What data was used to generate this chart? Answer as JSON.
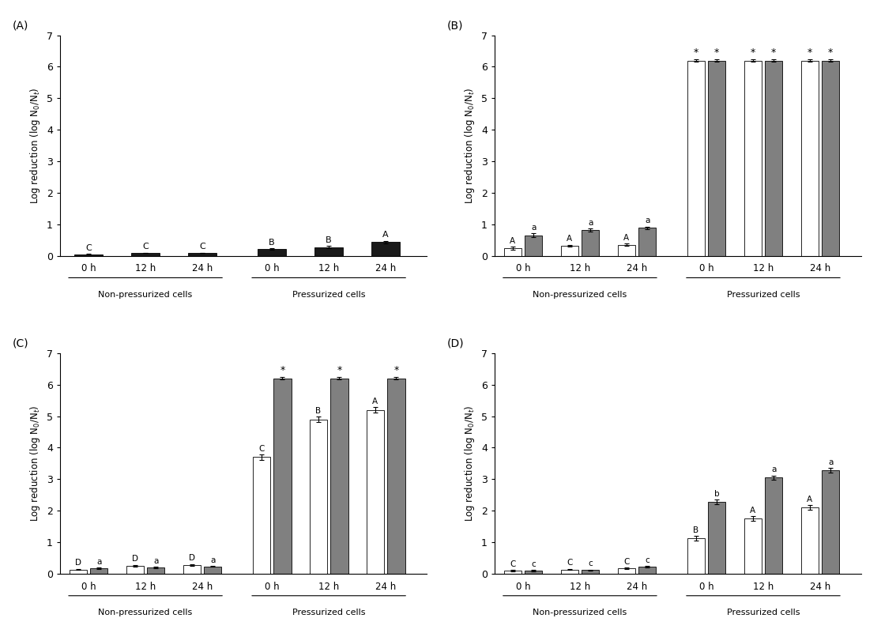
{
  "panels": [
    "A",
    "B",
    "C",
    "D"
  ],
  "time_labels": [
    "0 h",
    "12 h",
    "24 h"
  ],
  "bar_color_white": "#ffffff",
  "bar_color_gray": "#808080",
  "bar_color_black": "#1a1a1a",
  "ylim": [
    0,
    7
  ],
  "yticks": [
    0,
    1,
    2,
    3,
    4,
    5,
    6,
    7
  ],
  "A": {
    "title": "(A)",
    "non_pressurized": [
      0.05,
      0.09,
      0.09
    ],
    "non_pressurized_err": [
      0.01,
      0.01,
      0.01
    ],
    "pressurized": [
      0.21,
      0.27,
      0.43
    ],
    "pressurized_err": [
      0.03,
      0.04,
      0.04
    ],
    "labels_non": [
      "C",
      "C",
      "C"
    ],
    "labels_press": [
      "B",
      "B",
      "A"
    ]
  },
  "B": {
    "title": "(B)",
    "non_pressurized_white": [
      0.24,
      0.32,
      0.35
    ],
    "non_pressurized_white_err": [
      0.04,
      0.03,
      0.03
    ],
    "non_pressurized_gray": [
      0.65,
      0.82,
      0.88
    ],
    "non_pressurized_gray_err": [
      0.06,
      0.05,
      0.05
    ],
    "pressurized_white": [
      6.2,
      6.2,
      6.2
    ],
    "pressurized_white_err": [
      0.04,
      0.04,
      0.04
    ],
    "pressurized_gray": [
      6.2,
      6.2,
      6.2
    ],
    "pressurized_gray_err": [
      0.04,
      0.04,
      0.04
    ],
    "labels_non_white": [
      "A",
      "A",
      "A"
    ],
    "labels_non_gray": [
      "a",
      "a",
      "a"
    ],
    "star_white_press": [
      true,
      true,
      true
    ],
    "star_gray_press": [
      true,
      true,
      true
    ]
  },
  "C": {
    "title": "(C)",
    "non_pressurized_white": [
      0.13,
      0.25,
      0.28
    ],
    "non_pressurized_white_err": [
      0.02,
      0.03,
      0.03
    ],
    "non_pressurized_gray": [
      0.17,
      0.2,
      0.23
    ],
    "non_pressurized_gray_err": [
      0.02,
      0.02,
      0.02
    ],
    "pressurized_white": [
      3.7,
      4.9,
      5.2
    ],
    "pressurized_white_err": [
      0.08,
      0.09,
      0.09
    ],
    "pressurized_gray": [
      6.2,
      6.2,
      6.2
    ],
    "pressurized_gray_err": [
      0.04,
      0.04,
      0.04
    ],
    "labels_non_white": [
      "D",
      "D",
      "D"
    ],
    "labels_non_gray": [
      "a",
      "a",
      "a"
    ],
    "labels_press_white": [
      "C",
      "B",
      "A"
    ],
    "star_gray_press": [
      true,
      true,
      true
    ]
  },
  "D": {
    "title": "(D)",
    "non_pressurized_white": [
      0.1,
      0.13,
      0.17
    ],
    "non_pressurized_white_err": [
      0.02,
      0.02,
      0.02
    ],
    "non_pressurized_gray": [
      0.09,
      0.11,
      0.22
    ],
    "non_pressurized_gray_err": [
      0.02,
      0.02,
      0.02
    ],
    "pressurized_white": [
      1.13,
      1.75,
      2.1
    ],
    "pressurized_white_err": [
      0.07,
      0.08,
      0.08
    ],
    "pressurized_gray": [
      2.28,
      3.05,
      3.28
    ],
    "pressurized_gray_err": [
      0.07,
      0.07,
      0.07
    ],
    "labels_non_white": [
      "C",
      "C",
      "C"
    ],
    "labels_non_gray": [
      "c",
      "c",
      "c"
    ],
    "labels_press_white": [
      "B",
      "A",
      "A"
    ],
    "labels_press_gray": [
      "b",
      "a",
      "a"
    ]
  }
}
